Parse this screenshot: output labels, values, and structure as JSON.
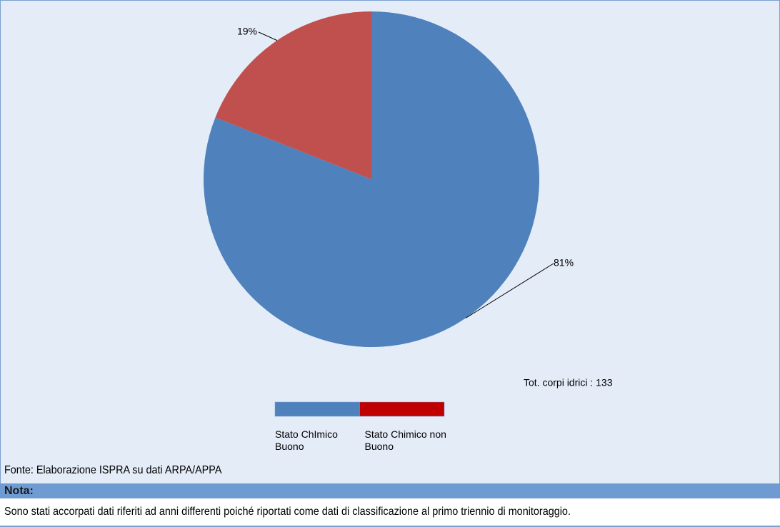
{
  "chart_data": {
    "type": "pie",
    "categories": [
      "Stato ChImico Buono",
      "Stato Chimico non Buono"
    ],
    "values": [
      81,
      19
    ],
    "value_labels": [
      "81%",
      "19%"
    ],
    "colors": [
      "#4f81bd",
      "#c0504d"
    ],
    "legend_colors": [
      "#4f81bd",
      "#c00000"
    ],
    "annotation": "Tot. corpi idrici : 133"
  },
  "footer": {
    "source": "Fonte: Elaborazione ISPRA su dati ARPA/APPA",
    "note_label": "Nota:",
    "note_text": "Sono stati accorpati dati riferiti ad anni differenti poiché riportati come dati di classificazione al primo triennio di monitoraggio."
  }
}
